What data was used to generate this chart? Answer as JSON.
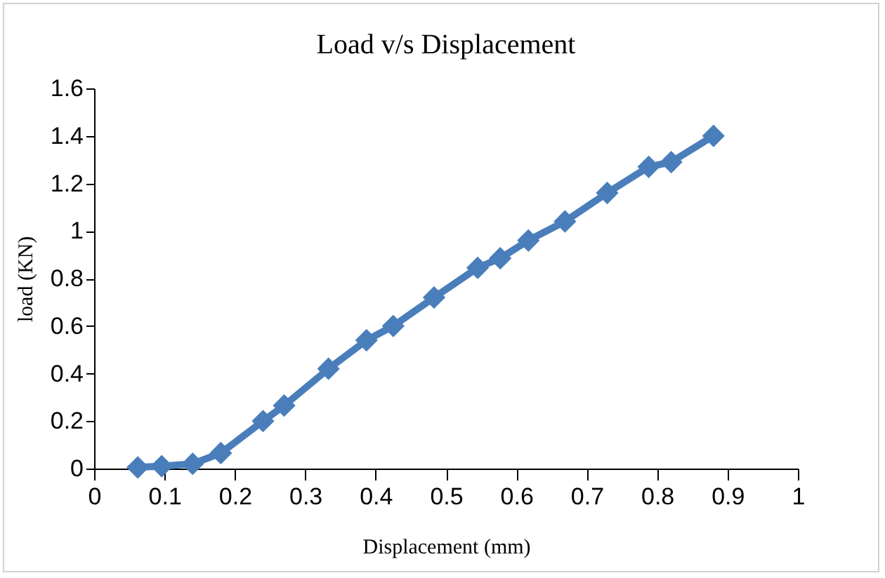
{
  "chart_data": {
    "type": "line",
    "title": "Load v/s Displacement",
    "xlabel": "Displacement (mm)",
    "ylabel": "load (KN)",
    "x": [
      0.062,
      0.096,
      0.14,
      0.18,
      0.24,
      0.27,
      0.333,
      0.387,
      0.425,
      0.483,
      0.545,
      0.577,
      0.617,
      0.669,
      0.729,
      0.788,
      0.82,
      0.88
    ],
    "series": [
      {
        "color": "#4a7ebb",
        "values": [
          0.005,
          0.01,
          0.02,
          0.065,
          0.2,
          0.265,
          0.42,
          0.54,
          0.6,
          0.72,
          0.845,
          0.885,
          0.96,
          1.04,
          1.16,
          1.27,
          1.29,
          1.4
        ]
      }
    ],
    "xlim": [
      0,
      1
    ],
    "xticks": [
      0,
      0.1,
      0.2,
      0.3,
      0.4,
      0.5,
      0.6,
      0.7,
      0.8,
      0.9,
      1
    ],
    "ylim": [
      0,
      1.6
    ],
    "yticks": [
      0,
      0.2,
      0.4,
      0.6,
      0.8,
      1,
      1.2,
      1.4,
      1.6
    ],
    "grid": false,
    "legend": false,
    "marker": "diamond",
    "line_style": "solid"
  }
}
